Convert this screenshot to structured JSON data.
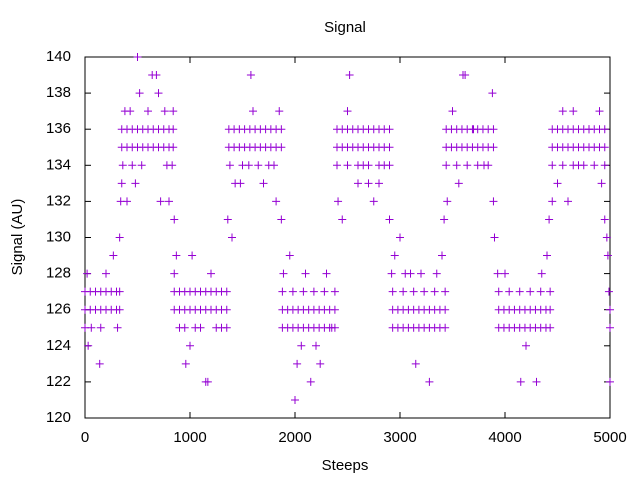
{
  "chart_data": {
    "type": "scatter",
    "title": "Signal",
    "x_label": "Steeps",
    "y_label": "Signal (AU)",
    "color": "#9400d3",
    "marker": "+",
    "xlim": [
      0,
      5000
    ],
    "xticks": [
      0,
      1000,
      2000,
      3000,
      4000,
      5000
    ],
    "ylim": [
      120,
      140
    ],
    "yticks": [
      120,
      122,
      124,
      126,
      128,
      130,
      132,
      134,
      136,
      138,
      140
    ],
    "x": [
      0,
      50,
      100,
      150,
      200,
      250,
      300,
      330,
      0,
      50,
      100,
      150,
      200,
      250,
      300,
      330,
      0,
      20,
      30,
      60,
      140,
      150,
      200,
      270,
      310,
      330,
      350,
      400,
      450,
      500,
      550,
      600,
      650,
      700,
      750,
      800,
      840,
      350,
      400,
      450,
      500,
      550,
      600,
      650,
      700,
      750,
      800,
      840,
      340,
      350,
      360,
      380,
      400,
      430,
      450,
      480,
      500,
      520,
      540,
      600,
      640,
      680,
      700,
      720,
      760,
      780,
      800,
      830,
      840,
      850,
      850,
      900,
      950,
      1000,
      1050,
      1100,
      1150,
      1200,
      1250,
      1300,
      1350,
      850,
      900,
      950,
      1000,
      1050,
      1100,
      1150,
      1200,
      1250,
      1300,
      1350,
      850,
      870,
      900,
      950,
      960,
      1000,
      1020,
      1050,
      1100,
      1150,
      1170,
      1200,
      1250,
      1300,
      1350,
      1370,
      1420,
      1470,
      1520,
      1570,
      1620,
      1670,
      1720,
      1770,
      1820,
      1870,
      1370,
      1420,
      1470,
      1520,
      1570,
      1620,
      1670,
      1720,
      1770,
      1820,
      1870,
      1360,
      1380,
      1400,
      1430,
      1480,
      1500,
      1560,
      1580,
      1600,
      1650,
      1700,
      1750,
      1800,
      1820,
      1850,
      1870,
      1880,
      1930,
      1980,
      2030,
      2080,
      2130,
      2180,
      2230,
      2280,
      2330,
      2380,
      1880,
      1930,
      1980,
      2030,
      2080,
      2130,
      2180,
      2230,
      2280,
      2330,
      2380,
      1880,
      1980,
      2080,
      2180,
      2280,
      2380,
      1890,
      1950,
      2000,
      2020,
      2060,
      2100,
      2150,
      2200,
      2240,
      2300,
      2350,
      2400,
      2450,
      2500,
      2550,
      2600,
      2650,
      2700,
      2750,
      2800,
      2850,
      2900,
      2400,
      2450,
      2500,
      2550,
      2600,
      2650,
      2700,
      2750,
      2800,
      2850,
      2900,
      2400,
      2500,
      2600,
      2700,
      2800,
      2900,
      2410,
      2450,
      2500,
      2520,
      2600,
      2650,
      2700,
      2750,
      2800,
      2850,
      2900,
      2930,
      2980,
      3030,
      3080,
      3130,
      3180,
      3230,
      3280,
      3330,
      3380,
      3430,
      2930,
      2980,
      3030,
      3080,
      3130,
      3180,
      3230,
      3280,
      3330,
      3380,
      3430,
      2930,
      3030,
      3130,
      3230,
      3330,
      3430,
      2920,
      2950,
      3000,
      3050,
      3100,
      3150,
      3200,
      3280,
      3350,
      3400,
      3440,
      3490,
      3540,
      3590,
      3640,
      3690,
      3740,
      3790,
      3840,
      3890,
      3440,
      3490,
      3540,
      3590,
      3640,
      3690,
      3740,
      3790,
      3840,
      3890,
      3440,
      3540,
      3640,
      3740,
      3840,
      3420,
      3450,
      3500,
      3560,
      3600,
      3620,
      3700,
      3800,
      3880,
      3890,
      3900,
      3940,
      3990,
      4040,
      4090,
      4140,
      4190,
      4240,
      4290,
      4340,
      4390,
      4430,
      3940,
      3990,
      4040,
      4090,
      4140,
      4190,
      4240,
      4290,
      4340,
      4390,
      4430,
      3940,
      4040,
      4140,
      4240,
      4340,
      4430,
      3930,
      4000,
      4150,
      4200,
      4300,
      4350,
      4400,
      4420,
      4450,
      4500,
      4550,
      4600,
      4650,
      4700,
      4750,
      4800,
      4850,
      4900,
      4950,
      4450,
      4500,
      4550,
      4600,
      4650,
      4700,
      4750,
      4800,
      4850,
      4900,
      4950,
      4450,
      4550,
      4650,
      4750,
      4850,
      4950,
      4450,
      4500,
      4550,
      4600,
      4650,
      4700,
      4800,
      4900,
      4920,
      4950,
      4970,
      4980,
      4990,
      5000,
      5000,
      5000
    ],
    "y": [
      127,
      127,
      127,
      127,
      127,
      127,
      127,
      127,
      126,
      126,
      126,
      126,
      126,
      126,
      126,
      126,
      125,
      128,
      124,
      125,
      123,
      125,
      128,
      129,
      125,
      130,
      136,
      136,
      136,
      136,
      136,
      136,
      136,
      136,
      136,
      136,
      136,
      135,
      135,
      135,
      135,
      135,
      135,
      135,
      135,
      135,
      135,
      135,
      132,
      133,
      134,
      137,
      132,
      137,
      134,
      133,
      140,
      138,
      134,
      137,
      139,
      139,
      138,
      132,
      137,
      134,
      132,
      134,
      137,
      131,
      127,
      127,
      127,
      127,
      127,
      127,
      127,
      127,
      127,
      127,
      127,
      126,
      126,
      126,
      126,
      126,
      126,
      126,
      126,
      126,
      126,
      126,
      128,
      129,
      125,
      125,
      123,
      124,
      129,
      125,
      125,
      122,
      122,
      128,
      125,
      125,
      125,
      136,
      136,
      136,
      136,
      136,
      136,
      136,
      136,
      136,
      136,
      136,
      135,
      135,
      135,
      135,
      135,
      135,
      135,
      135,
      135,
      135,
      135,
      131,
      134,
      130,
      133,
      133,
      134,
      134,
      139,
      137,
      134,
      133,
      134,
      134,
      132,
      137,
      131,
      126,
      126,
      126,
      126,
      126,
      126,
      126,
      126,
      126,
      126,
      126,
      125,
      125,
      125,
      125,
      125,
      125,
      125,
      125,
      125,
      125,
      125,
      127,
      127,
      127,
      127,
      127,
      127,
      128,
      129,
      121,
      123,
      124,
      128,
      122,
      124,
      123,
      128,
      125,
      136,
      136,
      136,
      136,
      136,
      136,
      136,
      136,
      136,
      136,
      136,
      135,
      135,
      135,
      135,
      135,
      135,
      135,
      135,
      135,
      135,
      135,
      134,
      134,
      134,
      134,
      134,
      134,
      132,
      131,
      137,
      139,
      133,
      134,
      133,
      132,
      133,
      134,
      131,
      126,
      126,
      126,
      126,
      126,
      126,
      126,
      126,
      126,
      126,
      126,
      125,
      125,
      125,
      125,
      125,
      125,
      125,
      125,
      125,
      125,
      125,
      127,
      127,
      127,
      127,
      127,
      127,
      128,
      129,
      130,
      128,
      128,
      123,
      128,
      122,
      128,
      129,
      136,
      136,
      136,
      136,
      136,
      136,
      136,
      136,
      136,
      136,
      135,
      135,
      135,
      135,
      135,
      135,
      135,
      135,
      135,
      135,
      134,
      134,
      134,
      134,
      134,
      131,
      132,
      137,
      133,
      139,
      139,
      136,
      134,
      138,
      132,
      130,
      126,
      126,
      126,
      126,
      126,
      126,
      126,
      126,
      126,
      126,
      126,
      125,
      125,
      125,
      125,
      125,
      125,
      125,
      125,
      125,
      125,
      125,
      127,
      127,
      127,
      127,
      127,
      127,
      128,
      128,
      122,
      124,
      122,
      128,
      129,
      131,
      136,
      136,
      136,
      136,
      136,
      136,
      136,
      136,
      136,
      136,
      136,
      135,
      135,
      135,
      135,
      135,
      135,
      135,
      135,
      135,
      135,
      135,
      134,
      134,
      134,
      134,
      134,
      134,
      132,
      133,
      137,
      132,
      137,
      134,
      136,
      137,
      133,
      131,
      130,
      129,
      127,
      126,
      125,
      122
    ]
  }
}
